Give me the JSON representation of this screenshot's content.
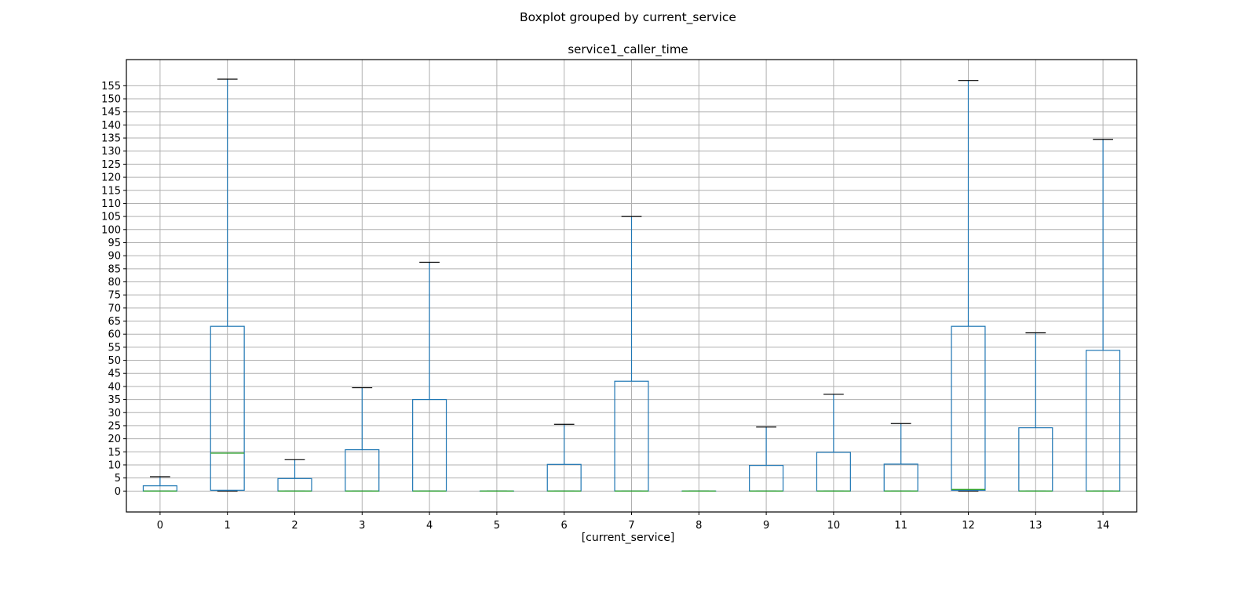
{
  "suptitle": "Boxplot grouped by current_service",
  "chart_data": {
    "type": "boxplot",
    "title": "service1_caller_time",
    "xlabel": "[current_service]",
    "ylabel": "",
    "ylim": [
      -8,
      165
    ],
    "yticks": [
      0,
      5,
      10,
      15,
      20,
      25,
      30,
      35,
      40,
      45,
      50,
      55,
      60,
      65,
      70,
      75,
      80,
      85,
      90,
      95,
      100,
      105,
      110,
      115,
      120,
      125,
      130,
      135,
      140,
      145,
      150,
      155
    ],
    "grid": true,
    "colors": {
      "box": "#1f77b4",
      "median": "#2ca02c",
      "cap": "#000000",
      "grid": "#b0b0b0"
    },
    "categories": [
      "0",
      "1",
      "2",
      "3",
      "4",
      "5",
      "6",
      "7",
      "8",
      "9",
      "10",
      "11",
      "12",
      "13",
      "14"
    ],
    "boxes": [
      {
        "whislo": 0,
        "q1": 0,
        "med": 0,
        "q3": 2,
        "whishi": 5.5
      },
      {
        "whislo": 0,
        "q1": 0.3,
        "med": 14.5,
        "q3": 63,
        "whishi": 157.5
      },
      {
        "whislo": 0,
        "q1": 0,
        "med": 0,
        "q3": 4.8,
        "whishi": 12
      },
      {
        "whislo": 0,
        "q1": 0,
        "med": 0,
        "q3": 15.8,
        "whishi": 39.5
      },
      {
        "whislo": 0,
        "q1": 0,
        "med": 0,
        "q3": 35,
        "whishi": 87.5
      },
      {
        "whislo": 0,
        "q1": 0,
        "med": 0,
        "q3": 0,
        "whishi": 0
      },
      {
        "whislo": 0,
        "q1": 0,
        "med": 0,
        "q3": 10.2,
        "whishi": 25.5
      },
      {
        "whislo": 0,
        "q1": 0,
        "med": 0,
        "q3": 42,
        "whishi": 105
      },
      {
        "whislo": 0,
        "q1": 0,
        "med": 0,
        "q3": 0,
        "whishi": 0
      },
      {
        "whislo": 0,
        "q1": 0,
        "med": 0,
        "q3": 9.8,
        "whishi": 24.5
      },
      {
        "whislo": 0,
        "q1": 0,
        "med": 0,
        "q3": 14.8,
        "whishi": 37
      },
      {
        "whislo": 0,
        "q1": 0,
        "med": 0,
        "q3": 10.3,
        "whishi": 25.8
      },
      {
        "whislo": 0,
        "q1": 0.3,
        "med": 0.6,
        "q3": 63,
        "whishi": 157
      },
      {
        "whislo": 0,
        "q1": 0,
        "med": 0,
        "q3": 24.2,
        "whishi": 60.5
      },
      {
        "whislo": 0,
        "q1": 0,
        "med": 0,
        "q3": 53.8,
        "whishi": 134.5
      }
    ]
  }
}
